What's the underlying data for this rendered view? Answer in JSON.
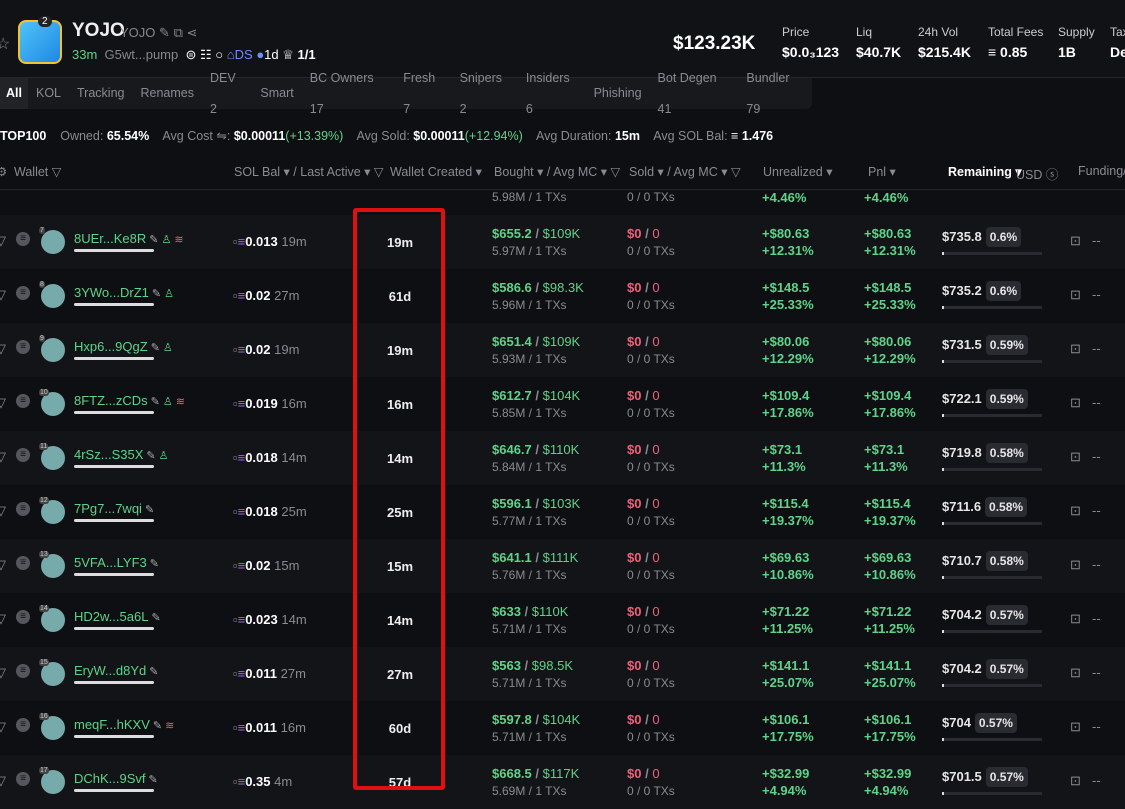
{
  "token": {
    "name": "YOJO",
    "symbol": "YOJO",
    "age": "33m",
    "address": "G5wt...pump",
    "badge_count": "2",
    "ds": "DS",
    "dex_age": "1d",
    "holders_ratio": "1/1",
    "market_cap": "$123.23K"
  },
  "stats": [
    {
      "label": "Price",
      "value": "$0.0₃123"
    },
    {
      "label": "Liq",
      "value": "$40.7K"
    },
    {
      "label": "24h Vol",
      "value": "$215.4K"
    },
    {
      "label": "Total Fees",
      "value": "≡ 0.85"
    },
    {
      "label": "Supply",
      "value": "1B"
    },
    {
      "label": "Tax",
      "value": "De"
    }
  ],
  "tabs": [
    "All",
    "KOL",
    "Tracking",
    "Renames",
    "DEV 2",
    "Smart",
    "BC Owners 17",
    "Fresh 7",
    "Snipers 2",
    "Insiders 6",
    "Phishing",
    "Bot Degen 41",
    "Bundler 79"
  ],
  "summary": {
    "top": "TOP100",
    "owned_label": "Owned:",
    "owned": "65.54%",
    "avg_cost_label": "Avg Cost ⇋:",
    "avg_cost": "$0.00011",
    "avg_cost_change": "(+13.39%)",
    "avg_sold_label": "Avg Sold:",
    "avg_sold": "$0.00011",
    "avg_sold_change": "(+12.94%)",
    "avg_duration_label": "Avg Duration:",
    "avg_duration": "15m",
    "avg_sol_label": "Avg SOL Bal:",
    "avg_sol": "≡ 1.476"
  },
  "headers": {
    "wallet": "Wallet ▽",
    "sol_bal": "SOL Bal ▾ / Last Active ▾ ▽",
    "wallet_created": "Wallet Created ▾",
    "bought": "Bought ▾ / Avg MC ▾ ▽",
    "sold": "Sold ▾ / Avg MC ▾ ▽",
    "unrealized": "Unrealized ▾",
    "pnl": "Pnl ▾",
    "remaining": "Remaining ▾",
    "remaining_unit": "USD ⓢ",
    "funding": "Funding/"
  },
  "partial_row": {
    "bought_sub": "5.98M / 1 TXs",
    "sold_sub": "0 / 0 TXs",
    "unrealized_pct": "+4.46%",
    "pnl_pct": "+4.46%"
  },
  "rows": [
    {
      "rank": "7",
      "wallet": "8UEr...Ke8R",
      "icons": [
        "edit",
        "user",
        "stack"
      ],
      "sol": "0.013",
      "last": "19m",
      "created": "19m",
      "bought": "$655.2",
      "bmc": "$109K",
      "bsub": "5.97M / 1 TXs",
      "sold": "$0",
      "smc": "0",
      "ssub": "0 / 0 TXs",
      "unr": "+$80.63",
      "unrp": "+12.31%",
      "pnl": "+$80.63",
      "pnlp": "+12.31%",
      "rem": "$735.8",
      "remp": "0.6%",
      "fund": "--"
    },
    {
      "rank": "8",
      "wallet": "3YWo...DrZ1",
      "icons": [
        "edit",
        "user"
      ],
      "sol": "0.02",
      "last": "27m",
      "created": "61d",
      "bought": "$586.6",
      "bmc": "$98.3K",
      "bsub": "5.96M / 1 TXs",
      "sold": "$0",
      "smc": "0",
      "ssub": "0 / 0 TXs",
      "unr": "+$148.5",
      "unrp": "+25.33%",
      "pnl": "+$148.5",
      "pnlp": "+25.33%",
      "rem": "$735.2",
      "remp": "0.6%",
      "fund": "--"
    },
    {
      "rank": "9",
      "wallet": "Hxp6...9QgZ",
      "icons": [
        "edit",
        "user"
      ],
      "sol": "0.02",
      "last": "19m",
      "created": "19m",
      "bought": "$651.4",
      "bmc": "$109K",
      "bsub": "5.93M / 1 TXs",
      "sold": "$0",
      "smc": "0",
      "ssub": "0 / 0 TXs",
      "unr": "+$80.06",
      "unrp": "+12.29%",
      "pnl": "+$80.06",
      "pnlp": "+12.29%",
      "rem": "$731.5",
      "remp": "0.59%",
      "fund": "--"
    },
    {
      "rank": "10",
      "wallet": "8FTZ...zCDs",
      "icons": [
        "edit",
        "user",
        "stack"
      ],
      "sol": "0.019",
      "last": "16m",
      "created": "16m",
      "bought": "$612.7",
      "bmc": "$104K",
      "bsub": "5.85M / 1 TXs",
      "sold": "$0",
      "smc": "0",
      "ssub": "0 / 0 TXs",
      "unr": "+$109.4",
      "unrp": "+17.86%",
      "pnl": "+$109.4",
      "pnlp": "+17.86%",
      "rem": "$722.1",
      "remp": "0.59%",
      "fund": "--"
    },
    {
      "rank": "11",
      "wallet": "4rSz...S35X",
      "icons": [
        "edit",
        "user"
      ],
      "sol": "0.018",
      "last": "14m",
      "created": "14m",
      "bought": "$646.7",
      "bmc": "$110K",
      "bsub": "5.84M / 1 TXs",
      "sold": "$0",
      "smc": "0",
      "ssub": "0 / 0 TXs",
      "unr": "+$73.1",
      "unrp": "+11.3%",
      "pnl": "+$73.1",
      "pnlp": "+11.3%",
      "rem": "$719.8",
      "remp": "0.58%",
      "fund": "--"
    },
    {
      "rank": "12",
      "wallet": "7Pg7...7wqi",
      "icons": [
        "edit"
      ],
      "sol": "0.018",
      "last": "25m",
      "created": "25m",
      "bought": "$596.1",
      "bmc": "$103K",
      "bsub": "5.77M / 1 TXs",
      "sold": "$0",
      "smc": "0",
      "ssub": "0 / 0 TXs",
      "unr": "+$115.4",
      "unrp": "+19.37%",
      "pnl": "+$115.4",
      "pnlp": "+19.37%",
      "rem": "$711.6",
      "remp": "0.58%",
      "fund": "--"
    },
    {
      "rank": "13",
      "wallet": "5VFA...LYF3",
      "icons": [
        "edit"
      ],
      "sol": "0.02",
      "last": "15m",
      "created": "15m",
      "bought": "$641.1",
      "bmc": "$111K",
      "bsub": "5.76M / 1 TXs",
      "sold": "$0",
      "smc": "0",
      "ssub": "0 / 0 TXs",
      "unr": "+$69.63",
      "unrp": "+10.86%",
      "pnl": "+$69.63",
      "pnlp": "+10.86%",
      "rem": "$710.7",
      "remp": "0.58%",
      "fund": "--"
    },
    {
      "rank": "14",
      "wallet": "HD2w...5a6L",
      "icons": [
        "edit"
      ],
      "sol": "0.023",
      "last": "14m",
      "created": "14m",
      "bought": "$633",
      "bmc": "$110K",
      "bsub": "5.71M / 1 TXs",
      "sold": "$0",
      "smc": "0",
      "ssub": "0 / 0 TXs",
      "unr": "+$71.22",
      "unrp": "+11.25%",
      "pnl": "+$71.22",
      "pnlp": "+11.25%",
      "rem": "$704.2",
      "remp": "0.57%",
      "fund": "--"
    },
    {
      "rank": "15",
      "wallet": "EryW...d8Yd",
      "icons": [
        "edit"
      ],
      "sol": "0.011",
      "last": "27m",
      "created": "27m",
      "bought": "$563",
      "bmc": "$98.5K",
      "bsub": "5.71M / 1 TXs",
      "sold": "$0",
      "smc": "0",
      "ssub": "0 / 0 TXs",
      "unr": "+$141.1",
      "unrp": "+25.07%",
      "pnl": "+$141.1",
      "pnlp": "+25.07%",
      "rem": "$704.2",
      "remp": "0.57%",
      "fund": "--"
    },
    {
      "rank": "16",
      "wallet": "meqF...hKXV",
      "icons": [
        "edit",
        "stack"
      ],
      "sol": "0.011",
      "last": "16m",
      "created": "60d",
      "bought": "$597.8",
      "bmc": "$104K",
      "bsub": "5.71M / 1 TXs",
      "sold": "$0",
      "smc": "0",
      "ssub": "0 / 0 TXs",
      "unr": "+$106.1",
      "unrp": "+17.75%",
      "pnl": "+$106.1",
      "pnlp": "+17.75%",
      "rem": "$704",
      "remp": "0.57%",
      "fund": "--"
    },
    {
      "rank": "17",
      "wallet": "DChK...9Svf",
      "icons": [
        "edit"
      ],
      "sol": "0.35",
      "last": "4m",
      "created": "57d",
      "bought": "$668.5",
      "bmc": "$117K",
      "bsub": "5.69M / 1 TXs",
      "sold": "$0",
      "smc": "0",
      "ssub": "0 / 0 TXs",
      "unr": "+$32.99",
      "unrp": "+4.94%",
      "pnl": "+$32.99",
      "pnlp": "+4.94%",
      "rem": "$701.5",
      "remp": "0.57%",
      "fund": "--"
    }
  ],
  "colors": {
    "positive": "#5fd38a",
    "negative": "#f0607a",
    "highlight": "#e01010",
    "accent": "#6f8cff"
  }
}
